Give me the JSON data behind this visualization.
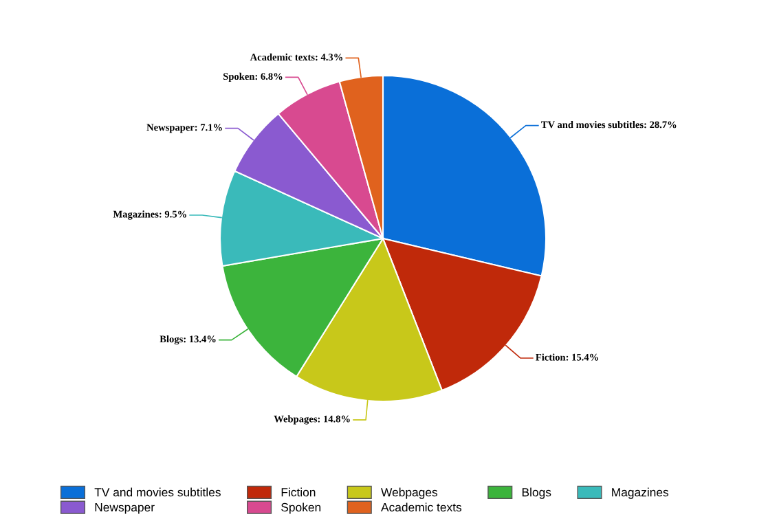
{
  "chart_data": {
    "type": "pie",
    "categories": [
      "TV and movies subtitles",
      "Fiction",
      "Webpages",
      "Blogs",
      "Magazines",
      "Newspaper",
      "Spoken",
      "Academic texts"
    ],
    "values": [
      28.7,
      15.4,
      14.8,
      13.4,
      9.5,
      7.1,
      6.8,
      4.3
    ],
    "value_labels": [
      "TV and movies subtitles: 28.7%",
      "Fiction: 15.4%",
      "Webpages: 14.8%",
      "Blogs: 13.4%",
      "Magazines: 9.5%",
      "Newspaper: 7.1%",
      "Spoken: 6.8%",
      "Academic texts: 4.3%"
    ],
    "colors": [
      "#0a6fd8",
      "#c0290a",
      "#c8c81a",
      "#3cb43c",
      "#3ababa",
      "#8a5ad0",
      "#d84a90",
      "#e0621e"
    ],
    "legend": "bottom"
  }
}
